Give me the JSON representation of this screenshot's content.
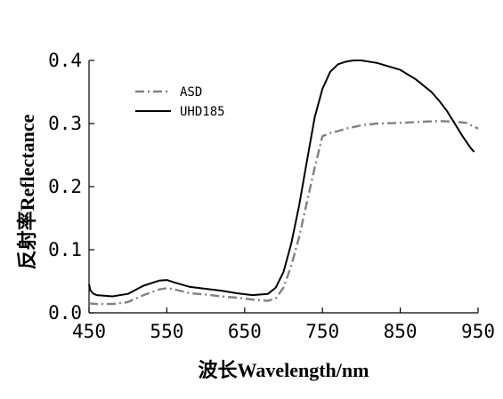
{
  "chart_data": {
    "type": "line",
    "xlabel": "波长Wavelength/nm",
    "ylabel": "反射率Reflectance",
    "xlim": [
      450,
      950
    ],
    "ylim": [
      0.0,
      0.4
    ],
    "xticks": [
      450,
      550,
      650,
      750,
      850,
      950
    ],
    "xtick_labels": [
      "450",
      "550",
      "650",
      "750",
      "850",
      "950"
    ],
    "yticks": [
      0.0,
      0.1,
      0.2,
      0.3,
      0.4
    ],
    "ytick_labels": [
      "0.0",
      "0.1",
      "0.2",
      "0.3",
      "0.4"
    ],
    "grid": false,
    "legend_position": "top-left",
    "series": [
      {
        "name": "ASD",
        "color": "#808080",
        "style": "dash-dot",
        "x": [
          450,
          460,
          480,
          500,
          520,
          540,
          550,
          560,
          580,
          600,
          620,
          640,
          660,
          680,
          690,
          700,
          710,
          720,
          730,
          740,
          750,
          760,
          770,
          780,
          800,
          820,
          850,
          880,
          900,
          920,
          935,
          950
        ],
        "y": [
          0.015,
          0.014,
          0.014,
          0.017,
          0.028,
          0.037,
          0.039,
          0.037,
          0.031,
          0.029,
          0.026,
          0.024,
          0.021,
          0.019,
          0.023,
          0.04,
          0.075,
          0.12,
          0.175,
          0.23,
          0.28,
          0.285,
          0.288,
          0.292,
          0.297,
          0.3,
          0.301,
          0.303,
          0.304,
          0.303,
          0.301,
          0.292
        ]
      },
      {
        "name": "UHD185",
        "color": "#000000",
        "style": "solid",
        "x": [
          450,
          452,
          456,
          460,
          480,
          500,
          520,
          540,
          550,
          560,
          580,
          600,
          620,
          640,
          660,
          680,
          690,
          700,
          710,
          720,
          730,
          740,
          750,
          760,
          770,
          780,
          790,
          800,
          820,
          850,
          870,
          890,
          900,
          910,
          920,
          930,
          940,
          945
        ],
        "y": [
          0.045,
          0.035,
          0.03,
          0.028,
          0.026,
          0.03,
          0.043,
          0.051,
          0.052,
          0.048,
          0.041,
          0.038,
          0.035,
          0.031,
          0.028,
          0.03,
          0.04,
          0.065,
          0.11,
          0.17,
          0.24,
          0.31,
          0.355,
          0.382,
          0.394,
          0.398,
          0.4,
          0.4,
          0.396,
          0.385,
          0.37,
          0.35,
          0.336,
          0.32,
          0.3,
          0.28,
          0.262,
          0.255
        ]
      }
    ]
  }
}
